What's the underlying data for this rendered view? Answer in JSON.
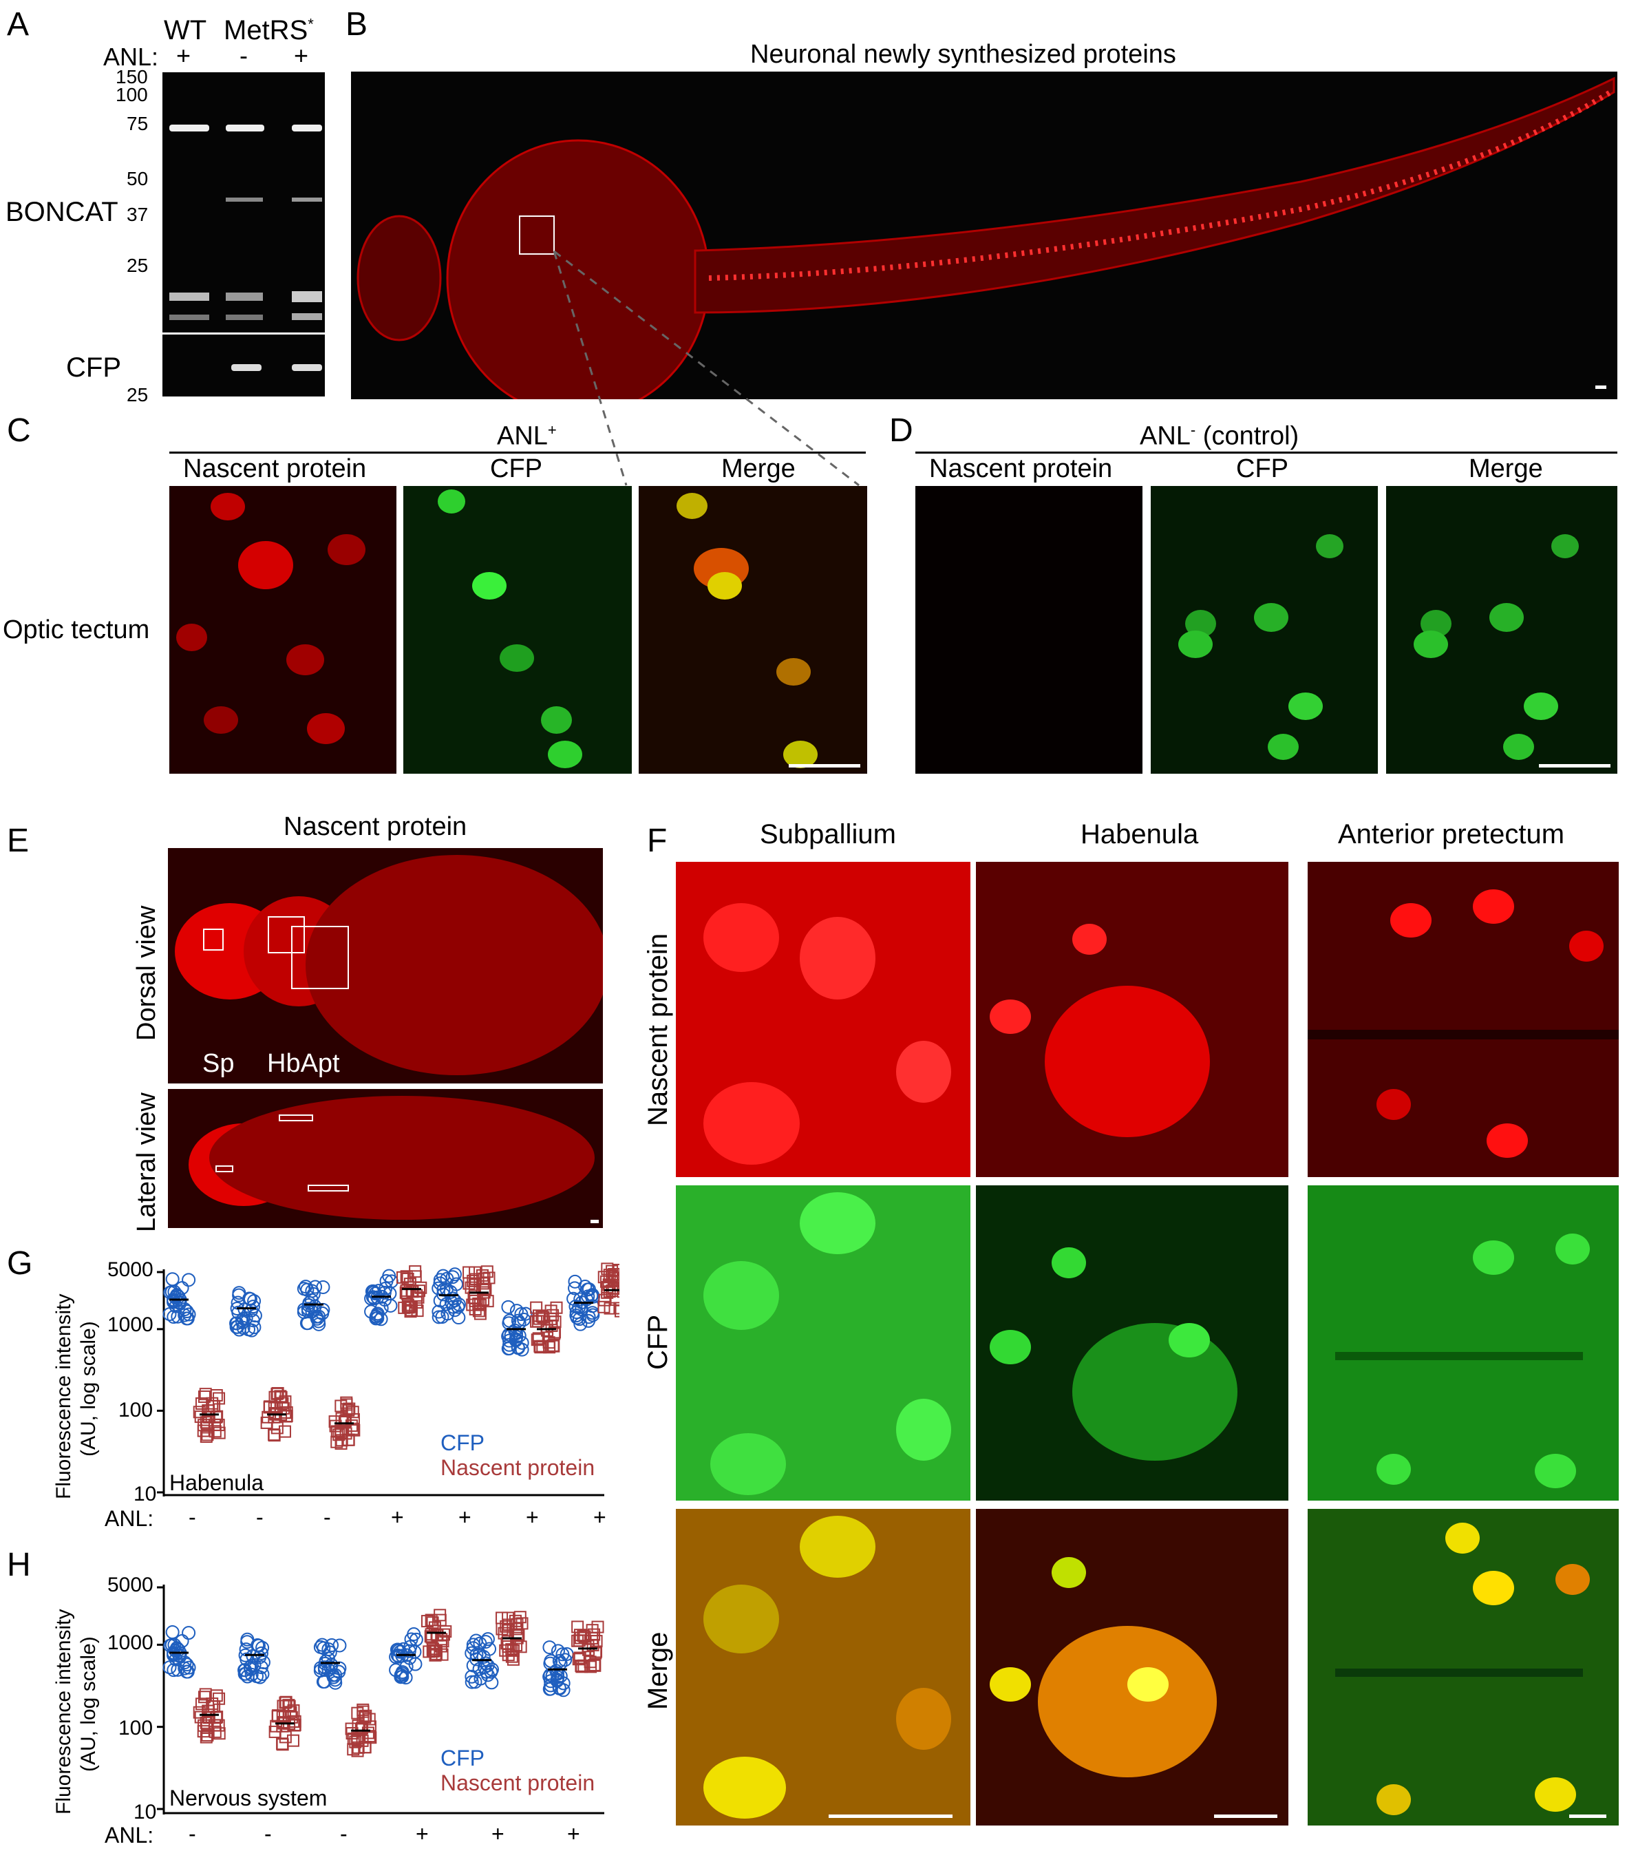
{
  "panel_letters": {
    "a": "A",
    "b": "B",
    "c": "C",
    "d": "D",
    "e": "E",
    "f": "F",
    "g": "G",
    "h": "H"
  },
  "panelA": {
    "col_wt": "WT",
    "col_metrs": "MetRS",
    "col_metrs_sup": "*",
    "anl_label": "ANL:",
    "anl_values": [
      "+",
      "-",
      "+"
    ],
    "mw_upper": [
      "150",
      "100",
      "75",
      "50",
      "37",
      "25"
    ],
    "mw_lower": [
      "25"
    ],
    "row_boncat": "BONCAT",
    "row_cfp": "CFP"
  },
  "panelB": {
    "title": "Neuronal newly synthesized proteins"
  },
  "panelC": {
    "header": "ANL",
    "header_sup": "+",
    "cols": [
      "Nascent protein",
      "CFP",
      "Merge"
    ],
    "row_label": "Optic tectum"
  },
  "panelD": {
    "header": "ANL",
    "header_sup": "-",
    "header_suffix": " (control)",
    "cols": [
      "Nascent protein",
      "CFP",
      "Merge"
    ]
  },
  "panelE": {
    "title": "Nascent protein",
    "dorsal": "Dorsal view",
    "lateral": "Lateral view",
    "labels": [
      "Sp",
      "HbApt"
    ]
  },
  "panelF": {
    "cols": [
      "Subpallium",
      "Habenula",
      "Anterior pretectum"
    ],
    "rows": [
      "Nascent protein",
      "CFP",
      "Merge"
    ]
  },
  "panelG": {
    "ylabel_line1": "Fluorescence intensity",
    "ylabel_line2": "(AU, log scale)",
    "yticks": [
      "5000",
      "1000",
      "100",
      "10"
    ],
    "anl_label": "ANL:",
    "anl_values": [
      "-",
      "-",
      "-",
      "+",
      "+",
      "+",
      "+"
    ],
    "region": "Habenula",
    "legend": [
      {
        "name": "CFP",
        "color": "#1f5fbf"
      },
      {
        "name": "Nascent protein",
        "color": "#a83a3a"
      }
    ]
  },
  "panelH": {
    "ylabel_line1": "Fluorescence intensity",
    "ylabel_line2": "(AU, log scale)",
    "yticks": [
      "5000",
      "1000",
      "100",
      "10"
    ],
    "anl_label": "ANL:",
    "anl_values": [
      "-",
      "-",
      "-",
      "+",
      "+",
      "+"
    ],
    "region": "Nervous system",
    "legend": [
      {
        "name": "CFP",
        "color": "#1f5fbf"
      },
      {
        "name": "Nascent protein",
        "color": "#a83a3a"
      }
    ]
  },
  "chart_data": [
    {
      "type": "scatter",
      "yscale": "log",
      "ylim": [
        10,
        5000
      ],
      "ylabel": "Fluorescence intensity (AU, log scale)",
      "categories": [
        "-",
        "-",
        "-",
        "+",
        "+",
        "+",
        "+"
      ],
      "series": [
        {
          "name": "CFP",
          "medians": [
            2300,
            1800,
            2000,
            2500,
            2600,
            1000,
            2100
          ]
        },
        {
          "name": "Nascent protein",
          "medians": [
            90,
            90,
            70,
            3100,
            2800,
            1000,
            3000
          ]
        }
      ]
    },
    {
      "type": "scatter",
      "yscale": "log",
      "ylim": [
        10,
        5000
      ],
      "ylabel": "Fluorescence intensity (AU, log scale)",
      "categories": [
        "-",
        "-",
        "-",
        "+",
        "+",
        "+"
      ],
      "series": [
        {
          "name": "CFP",
          "medians": [
            800,
            750,
            600,
            750,
            650,
            500
          ]
        },
        {
          "name": "Nascent protein",
          "medians": [
            140,
            110,
            90,
            1400,
            1200,
            900
          ]
        }
      ]
    }
  ]
}
